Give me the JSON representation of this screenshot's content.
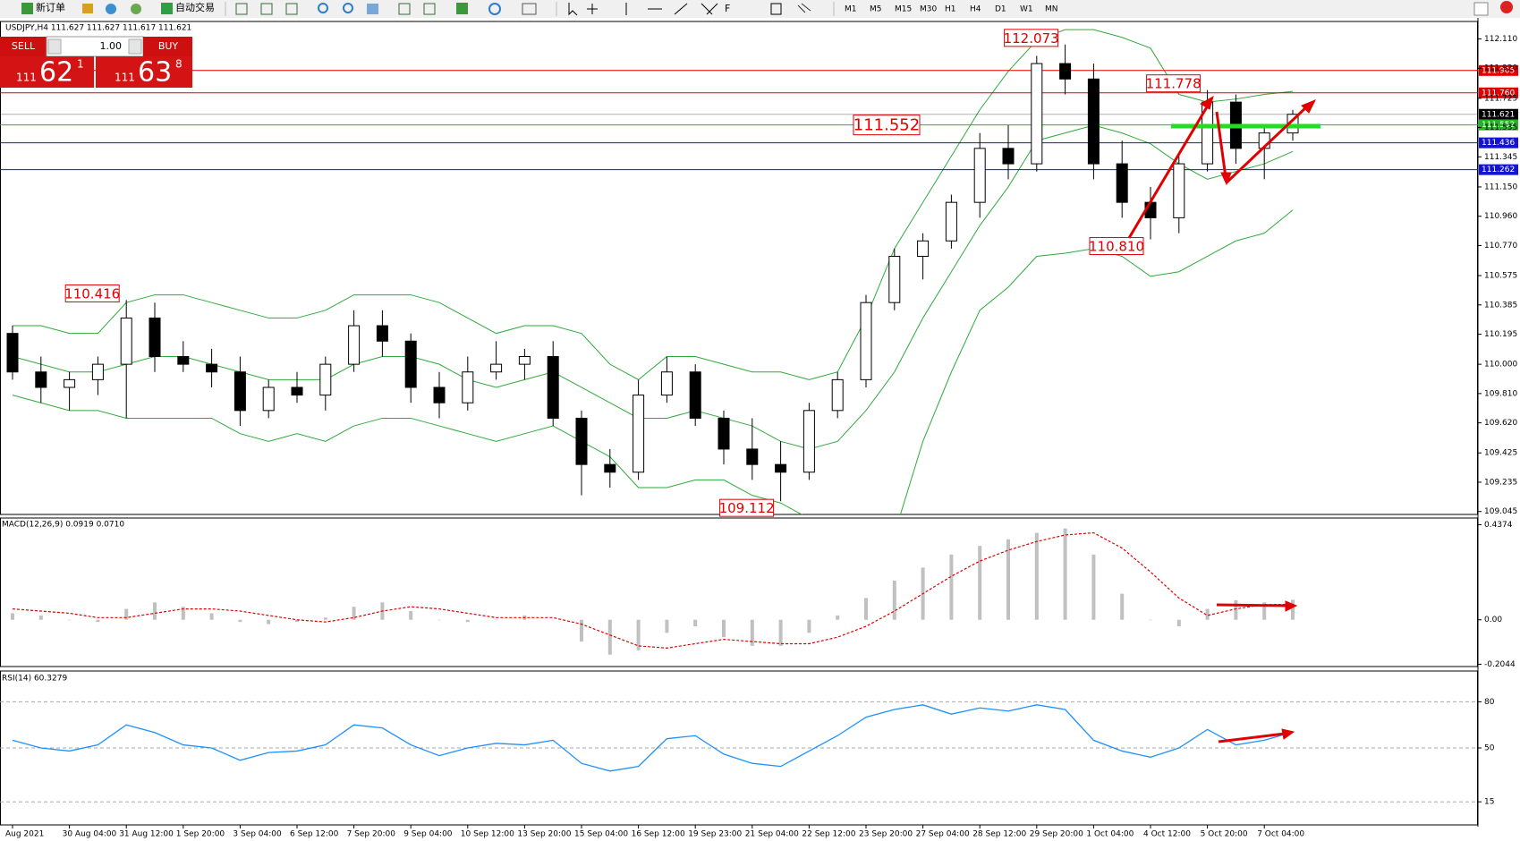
{
  "toolbar": {
    "new_order": "新订单",
    "auto_trading": "自动交易",
    "timeframes": [
      "M1",
      "M5",
      "M15",
      "M30",
      "H1",
      "H4",
      "D1",
      "W1",
      "MN"
    ]
  },
  "trade_panel": {
    "sell": "SELL",
    "buy": "BUY",
    "volume": "1.00",
    "bid": {
      "big": "111",
      "main": "62",
      "pip": "1"
    },
    "ask": {
      "big": "111",
      "main": "63",
      "pip": "8"
    }
  },
  "chart_data": [
    {
      "type": "candlestick",
      "title": "USDJPY,H4  111.627 111.627 111.617 111.621",
      "categories": [
        "Aug 2021",
        null,
        "30 Aug 04:00",
        null,
        "31 Aug 12:00",
        null,
        "1 Sep 20:00",
        null,
        "3 Sep 04:00",
        null,
        "6 Sep 12:00",
        null,
        "7 Sep 20:00",
        null,
        "9 Sep 04:00",
        null,
        "10 Sep 12:00",
        null,
        "13 Sep 20:00",
        null,
        "15 Sep 04:00",
        null,
        "16 Sep 12:00",
        null,
        "19 Sep 23:00",
        null,
        "21 Sep 04:00",
        null,
        "22 Sep 12:00",
        null,
        "23 Sep 20:00",
        null,
        "27 Sep 04:00",
        null,
        "28 Sep 12:00",
        null,
        "29 Sep 20:00",
        null,
        "1 Oct 04:00",
        null,
        "4 Oct 12:00",
        null,
        "5 Oct 20:00",
        null,
        "7 Oct 04:00",
        null
      ],
      "ohlc": [
        [
          110.2,
          110.25,
          109.9,
          109.95
        ],
        [
          109.95,
          110.05,
          109.75,
          109.85
        ],
        [
          109.85,
          109.95,
          109.7,
          109.9
        ],
        [
          109.9,
          110.05,
          109.8,
          110.0
        ],
        [
          110.0,
          110.416,
          109.65,
          110.3
        ],
        [
          110.3,
          110.4,
          109.95,
          110.05
        ],
        [
          110.05,
          110.15,
          109.95,
          110.0
        ],
        [
          110.0,
          110.1,
          109.85,
          109.95
        ],
        [
          109.95,
          110.05,
          109.6,
          109.7
        ],
        [
          109.7,
          109.9,
          109.65,
          109.85
        ],
        [
          109.85,
          109.95,
          109.75,
          109.8
        ],
        [
          109.8,
          110.05,
          109.7,
          110.0
        ],
        [
          110.0,
          110.35,
          109.95,
          110.25
        ],
        [
          110.25,
          110.35,
          110.05,
          110.15
        ],
        [
          110.15,
          110.2,
          109.75,
          109.85
        ],
        [
          109.85,
          109.95,
          109.65,
          109.75
        ],
        [
          109.75,
          110.05,
          109.7,
          109.95
        ],
        [
          109.95,
          110.15,
          109.9,
          110.0
        ],
        [
          110.0,
          110.1,
          109.9,
          110.05
        ],
        [
          110.05,
          110.15,
          109.6,
          109.65
        ],
        [
          109.65,
          109.7,
          109.15,
          109.35
        ],
        [
          109.35,
          109.45,
          109.2,
          109.3
        ],
        [
          109.3,
          109.9,
          109.25,
          109.8
        ],
        [
          109.8,
          110.05,
          109.75,
          109.95
        ],
        [
          109.95,
          110.0,
          109.6,
          109.65
        ],
        [
          109.65,
          109.7,
          109.35,
          109.45
        ],
        [
          109.45,
          109.65,
          109.25,
          109.35
        ],
        [
          109.35,
          109.5,
          109.112,
          109.3
        ],
        [
          109.3,
          109.75,
          109.25,
          109.7
        ],
        [
          109.7,
          109.95,
          109.65,
          109.9
        ],
        [
          109.9,
          110.45,
          109.85,
          110.4
        ],
        [
          110.4,
          110.75,
          110.35,
          110.7
        ],
        [
          110.7,
          110.85,
          110.55,
          110.8
        ],
        [
          110.8,
          111.1,
          110.75,
          111.05
        ],
        [
          111.05,
          111.5,
          110.95,
          111.4
        ],
        [
          111.4,
          111.55,
          111.2,
          111.3
        ],
        [
          111.3,
          112.0,
          111.25,
          111.95
        ],
        [
          111.95,
          112.073,
          111.75,
          111.85
        ],
        [
          111.85,
          111.95,
          111.2,
          111.3
        ],
        [
          111.3,
          111.45,
          110.95,
          111.05
        ],
        [
          111.05,
          111.15,
          110.81,
          110.95
        ],
        [
          110.95,
          111.35,
          110.85,
          111.3
        ],
        [
          111.3,
          111.778,
          111.25,
          111.7
        ],
        [
          111.7,
          111.75,
          111.3,
          111.4
        ],
        [
          111.4,
          111.55,
          111.2,
          111.5
        ],
        [
          111.5,
          111.65,
          111.45,
          111.621
        ]
      ],
      "colors": {
        "up": "#ffffff",
        "down": "#000000",
        "wick": "#000000"
      },
      "bollinger": {
        "color": "#2eaa3c",
        "upper": [
          110.25,
          110.25,
          110.2,
          110.2,
          110.4,
          110.45,
          110.45,
          110.4,
          110.35,
          110.3,
          110.3,
          110.35,
          110.45,
          110.45,
          110.45,
          110.4,
          110.3,
          110.2,
          110.25,
          110.25,
          110.2,
          110.0,
          109.9,
          110.05,
          110.05,
          110.0,
          109.95,
          109.95,
          109.9,
          109.95,
          110.3,
          110.75,
          111.05,
          111.35,
          111.65,
          111.9,
          112.1,
          112.17,
          112.17,
          112.12,
          112.05,
          111.75,
          111.7,
          111.72,
          111.75,
          111.77
        ],
        "middle": [
          110.05,
          110.0,
          109.95,
          109.95,
          110.0,
          110.05,
          110.05,
          110.0,
          109.95,
          109.9,
          109.9,
          109.9,
          110.0,
          110.05,
          110.05,
          110.0,
          109.9,
          109.85,
          109.9,
          109.95,
          109.85,
          109.75,
          109.65,
          109.65,
          109.7,
          109.65,
          109.6,
          109.5,
          109.45,
          109.5,
          109.7,
          109.95,
          110.3,
          110.6,
          110.9,
          111.15,
          111.45,
          111.5,
          111.55,
          111.5,
          111.43,
          111.3,
          111.2,
          111.25,
          111.3,
          111.38
        ],
        "lower": [
          109.8,
          109.75,
          109.7,
          109.7,
          109.65,
          109.65,
          109.65,
          109.65,
          109.55,
          109.5,
          109.55,
          109.5,
          109.6,
          109.65,
          109.65,
          109.6,
          109.55,
          109.5,
          109.55,
          109.6,
          109.5,
          109.4,
          109.2,
          109.2,
          109.25,
          109.25,
          109.15,
          109.1,
          109.0,
          108.95,
          108.8,
          108.9,
          109.5,
          109.95,
          110.35,
          110.5,
          110.7,
          110.72,
          110.75,
          110.7,
          110.57,
          110.6,
          110.7,
          110.8,
          110.85,
          111.0
        ]
      },
      "ylim": [
        109.026,
        112.223
      ],
      "yticks": [
        {
          "value": 112.11,
          "label": "112.110"
        },
        {
          "value": 111.92,
          "label": "111.920"
        },
        {
          "value": 111.725,
          "label": "111.725"
        },
        {
          "value": 111.535,
          "label": "111.535"
        },
        {
          "value": 111.345,
          "label": "111.345"
        },
        {
          "value": 111.15,
          "label": "111.150"
        },
        {
          "value": 110.96,
          "label": "110.960"
        },
        {
          "value": 110.77,
          "label": "110.770"
        },
        {
          "value": 110.575,
          "label": "110.575"
        },
        {
          "value": 110.385,
          "label": "110.385"
        },
        {
          "value": 110.195,
          "label": "110.195"
        },
        {
          "value": 110,
          "label": "110.000"
        },
        {
          "value": 109.81,
          "label": "109.810"
        },
        {
          "value": 109.62,
          "label": "109.620"
        },
        {
          "value": 109.425,
          "label": "109.425"
        },
        {
          "value": 109.235,
          "label": "109.235"
        },
        {
          "value": 109.045,
          "label": "109.045"
        }
      ],
      "hlines": [
        {
          "value": 111.905,
          "label": "111.905",
          "color": "#e00000"
        },
        {
          "value": 111.76,
          "label": "111.760",
          "color": "#e00000"
        },
        {
          "value": 111.621,
          "label": "111.621",
          "color": "#000000"
        },
        {
          "value": 111.552,
          "label": "111.552",
          "color": "#22b422"
        },
        {
          "value": 111.436,
          "label": "111.436",
          "color": "#1414d0"
        },
        {
          "value": 111.262,
          "label": "111.262",
          "color": "#1414d0"
        }
      ],
      "annotations": [
        {
          "value": 112.073,
          "label": "112.073"
        },
        {
          "value": 111.778,
          "label": "111.778"
        },
        {
          "value": 111.552,
          "label": "111.552"
        },
        {
          "value": 110.81,
          "label": "110.810"
        },
        {
          "value": 110.416,
          "label": "110.416"
        },
        {
          "value": 109.112,
          "label": "109.112"
        }
      ]
    },
    {
      "type": "macd",
      "title": "MACD(12,26,9) 0.0919 0.0710",
      "series": [
        {
          "color": "#c0c0c0",
          "values": [
            0.03,
            0.02,
            0,
            -0.01,
            0.05,
            0.08,
            0.06,
            0.03,
            -0.01,
            -0.02,
            -0.01,
            0.01,
            0.06,
            0.08,
            0.04,
            0,
            -0.01,
            0,
            0.02,
            0,
            -0.1,
            -0.16,
            -0.14,
            -0.06,
            -0.03,
            -0.08,
            -0.12,
            -0.12,
            -0.06,
            0.02,
            0.1,
            0.18,
            0.24,
            0.3,
            0.34,
            0.37,
            0.4,
            0.42,
            0.3,
            0.12,
            0,
            -0.03,
            0.05,
            0.09,
            0.08,
            0.0919
          ]
        },
        {
          "color": "#e00000",
          "values": [
            0.05,
            0.04,
            0.03,
            0.01,
            0.01,
            0.03,
            0.05,
            0.05,
            0.04,
            0.02,
            0,
            -0.01,
            0.01,
            0.04,
            0.06,
            0.05,
            0.03,
            0.01,
            0.01,
            0.01,
            -0.02,
            -0.07,
            -0.12,
            -0.13,
            -0.11,
            -0.09,
            -0.1,
            -0.11,
            -0.11,
            -0.08,
            -0.03,
            0.04,
            0.12,
            0.2,
            0.27,
            0.32,
            0.36,
            0.39,
            0.4,
            0.33,
            0.22,
            0.1,
            0.02,
            0.05,
            0.07,
            0.071
          ]
        }
      ],
      "ylim": [
        -0.215,
        0.468
      ],
      "yticks": [
        0.4374,
        {
          "value": 0,
          "label": "0.00"
        },
        -0.2044
      ]
    },
    {
      "type": "line",
      "title": "RSI(14) 60.3279",
      "color": "#1e90ff",
      "values": [
        55,
        50,
        48,
        52,
        65,
        60,
        52,
        50,
        42,
        47,
        48,
        52,
        65,
        63,
        52,
        45,
        50,
        53,
        52,
        55,
        40,
        35,
        38,
        56,
        58,
        46,
        40,
        38,
        48,
        58,
        70,
        75,
        78,
        72,
        76,
        74,
        78,
        75,
        55,
        48,
        44,
        50,
        62,
        52,
        55,
        60.3279
      ],
      "ylim": [
        0,
        100
      ],
      "yticks": [
        80,
        50,
        15
      ]
    }
  ]
}
